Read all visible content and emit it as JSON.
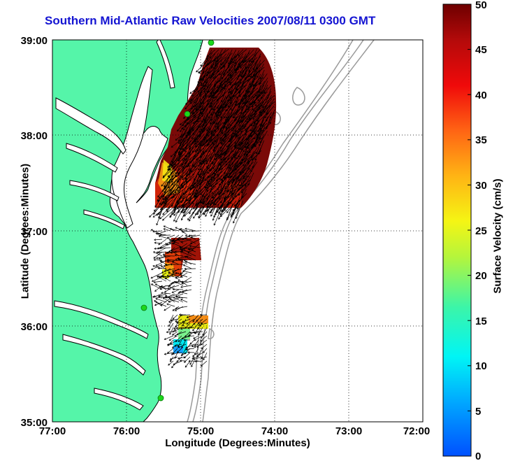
{
  "title": "Southern Mid-Atlantic Raw Velocities 2007/08/11 0300 GMT",
  "xlabel": "Longitude (Degrees:Minutes)",
  "ylabel": "Latitude (Degrees:Minutes)",
  "colorbar": {
    "label": "Surface Velocity (cm/s)",
    "range": [
      0,
      50
    ],
    "ticks": [
      "0",
      "5",
      "10",
      "15",
      "20",
      "25",
      "30",
      "35",
      "40",
      "45",
      "50"
    ]
  },
  "map": {
    "x_ticks": [
      "77:00",
      "76:00",
      "75:00",
      "74:00",
      "73:00",
      "72:00"
    ],
    "y_ticks": [
      "35:00",
      "36:00",
      "37:00",
      "38:00",
      "39:00"
    ],
    "x_range": [
      "77:00",
      "72:00"
    ],
    "y_range": [
      "35:00",
      "39:00"
    ],
    "grid": "dotted",
    "colors": {
      "land": "#55f5a9",
      "water": "#ffffff",
      "bathymetry": "#9a9a9a",
      "stations": "#1cd81c",
      "title": "#1414d2"
    }
  }
}
